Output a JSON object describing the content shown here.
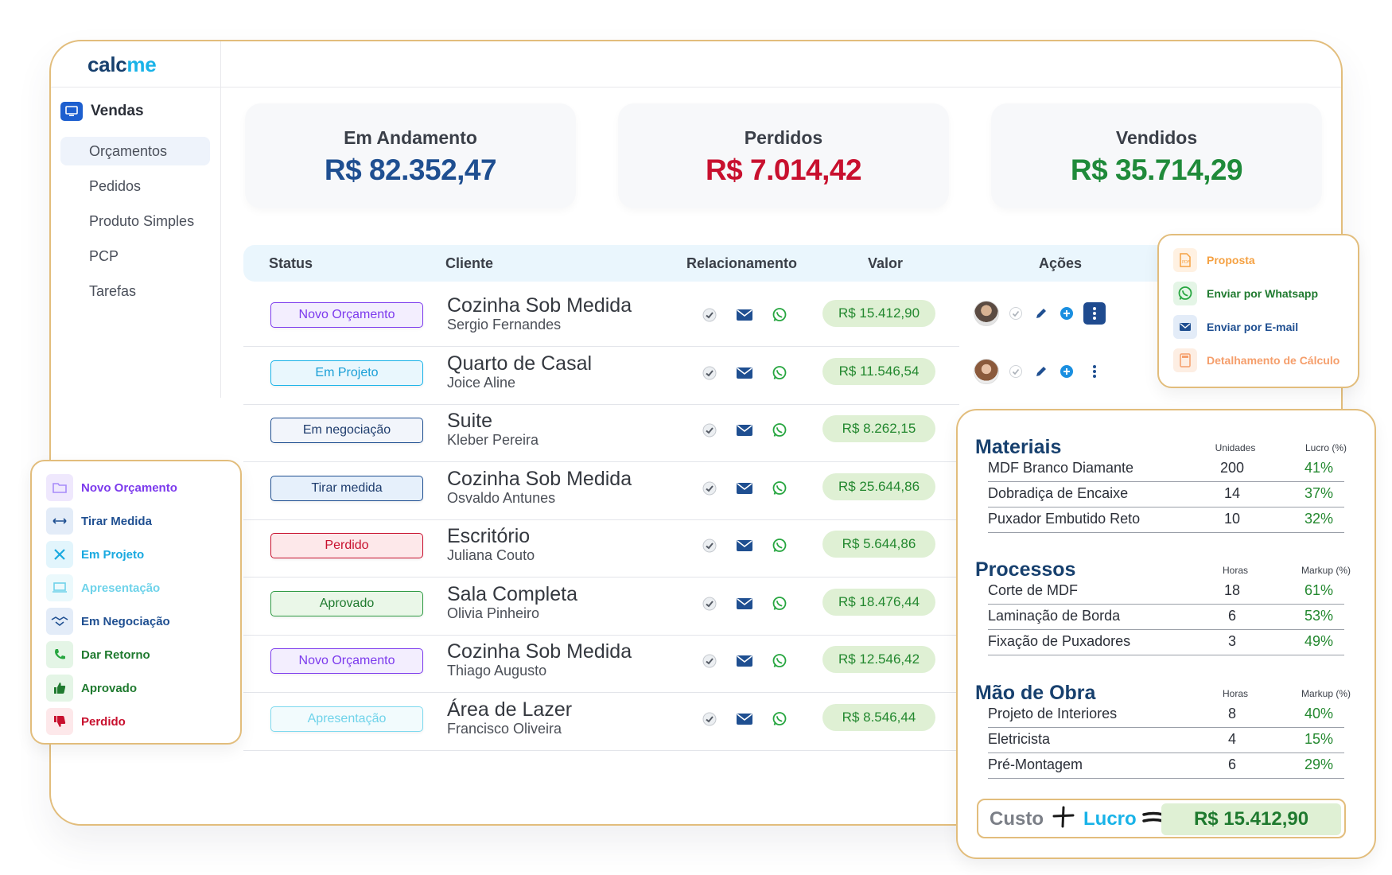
{
  "brand": {
    "part1": "calc",
    "part2": "me"
  },
  "sidebar": {
    "section": "Vendas",
    "items": [
      {
        "label": "Orçamentos"
      },
      {
        "label": "Pedidos"
      },
      {
        "label": "Produto Simples"
      },
      {
        "label": "PCP"
      },
      {
        "label": "Tarefas"
      }
    ]
  },
  "summary": [
    {
      "title": "Em Andamento",
      "value": "R$ 82.352,47",
      "color": "#1f4f91"
    },
    {
      "title": "Perdidos",
      "value": "R$ 7.014,42",
      "color": "#c8102e"
    },
    {
      "title": "Vendidos",
      "value": "R$ 35.714,29",
      "color": "#1f8a3a"
    }
  ],
  "table": {
    "headers": {
      "status": "Status",
      "cliente": "Cliente",
      "relacionamento": "Relacionamento",
      "valor": "Valor",
      "acoes": "Ações"
    },
    "rows": [
      {
        "status": "Novo Orçamento",
        "project": "Cozinha Sob Medida",
        "person": "Sergio Fernandes",
        "value": "R$ 15.412,90"
      },
      {
        "status": "Em Projeto",
        "project": "Quarto de Casal",
        "person": "Joice Aline",
        "value": "R$ 11.546,54"
      },
      {
        "status": "Em negociação",
        "project": "Suite",
        "person": "Kleber Pereira",
        "value": "R$ 8.262,15"
      },
      {
        "status": "Tirar medida",
        "project": "Cozinha Sob Medida",
        "person": "Osvaldo Antunes",
        "value": "R$ 25.644,86"
      },
      {
        "status": "Perdido",
        "project": "Escritório",
        "person": "Juliana Couto",
        "value": "R$ 5.644,86"
      },
      {
        "status": "Aprovado",
        "project": "Sala Completa",
        "person": "Olivia Pinheiro",
        "value": "R$ 18.476,44"
      },
      {
        "status": "Novo Orçamento",
        "project": "Cozinha Sob Medida",
        "person": "Thiago Augusto",
        "value": "R$ 12.546,42"
      },
      {
        "status": "Apresentação",
        "project": "Área de Lazer",
        "person": "Francisco Oliveira",
        "value": "R$ 8.546,44"
      }
    ]
  },
  "status_legend": [
    {
      "label": "Novo Orçamento",
      "icon": "folder-icon",
      "color": "#7c3aed"
    },
    {
      "label": "Tirar Medida",
      "icon": "ruler-icon",
      "color": "#1f4f91"
    },
    {
      "label": "Em Projeto",
      "icon": "tools-icon",
      "color": "#19a9e0"
    },
    {
      "label": "Apresentação",
      "icon": "laptop-icon",
      "color": "#6fd3ea"
    },
    {
      "label": "Em Negociação",
      "icon": "handshake-icon",
      "color": "#1f4f91"
    },
    {
      "label": "Dar Retorno",
      "icon": "phone-icon",
      "color": "#1f7a2f"
    },
    {
      "label": "Aprovado",
      "icon": "thumbs-up-icon",
      "color": "#1f7a2f"
    },
    {
      "label": "Perdido",
      "icon": "thumbs-down-icon",
      "color": "#c8102e"
    }
  ],
  "action_menu": [
    {
      "label": "Proposta",
      "icon": "pdf-icon",
      "color": "#f5a142"
    },
    {
      "label": "Enviar por Whatsapp",
      "icon": "whatsapp-icon",
      "color": "#1f7a2f"
    },
    {
      "label": "Enviar por E-mail",
      "icon": "mail-icon",
      "color": "#1f4f91"
    },
    {
      "label": "Detalhamento de Cálculo",
      "icon": "calculator-icon",
      "color": "#f59e6b"
    }
  ],
  "calc": {
    "materiais": {
      "title": "Materiais",
      "col1": "Unidades",
      "col2": "Lucro (%)",
      "rows": [
        {
          "name": "MDF Branco Diamante",
          "qty": "200",
          "pct": "41%"
        },
        {
          "name": "Dobradiça de Encaixe",
          "qty": "14",
          "pct": "37%"
        },
        {
          "name": "Puxador Embutido Reto",
          "qty": "10",
          "pct": "32%"
        }
      ]
    },
    "processos": {
      "title": "Processos",
      "col1": "Horas",
      "col2": "Markup (%)",
      "rows": [
        {
          "name": "Corte de MDF",
          "qty": "18",
          "pct": "61%"
        },
        {
          "name": "Laminação de Borda",
          "qty": "6",
          "pct": "53%"
        },
        {
          "name": "Fixação de Puxadores",
          "qty": "3",
          "pct": "49%"
        }
      ]
    },
    "mao_obra": {
      "title": "Mão de Obra",
      "col1": "Horas",
      "col2": "Markup (%)",
      "rows": [
        {
          "name": "Projeto de Interiores",
          "qty": "8",
          "pct": "40%"
        },
        {
          "name": "Eletricista",
          "qty": "4",
          "pct": "15%"
        },
        {
          "name": "Pré-Montagem",
          "qty": "6",
          "pct": "29%"
        }
      ]
    },
    "total": {
      "custo": "Custo",
      "lucro": "Lucro",
      "value": "R$ 15.412,90"
    }
  }
}
